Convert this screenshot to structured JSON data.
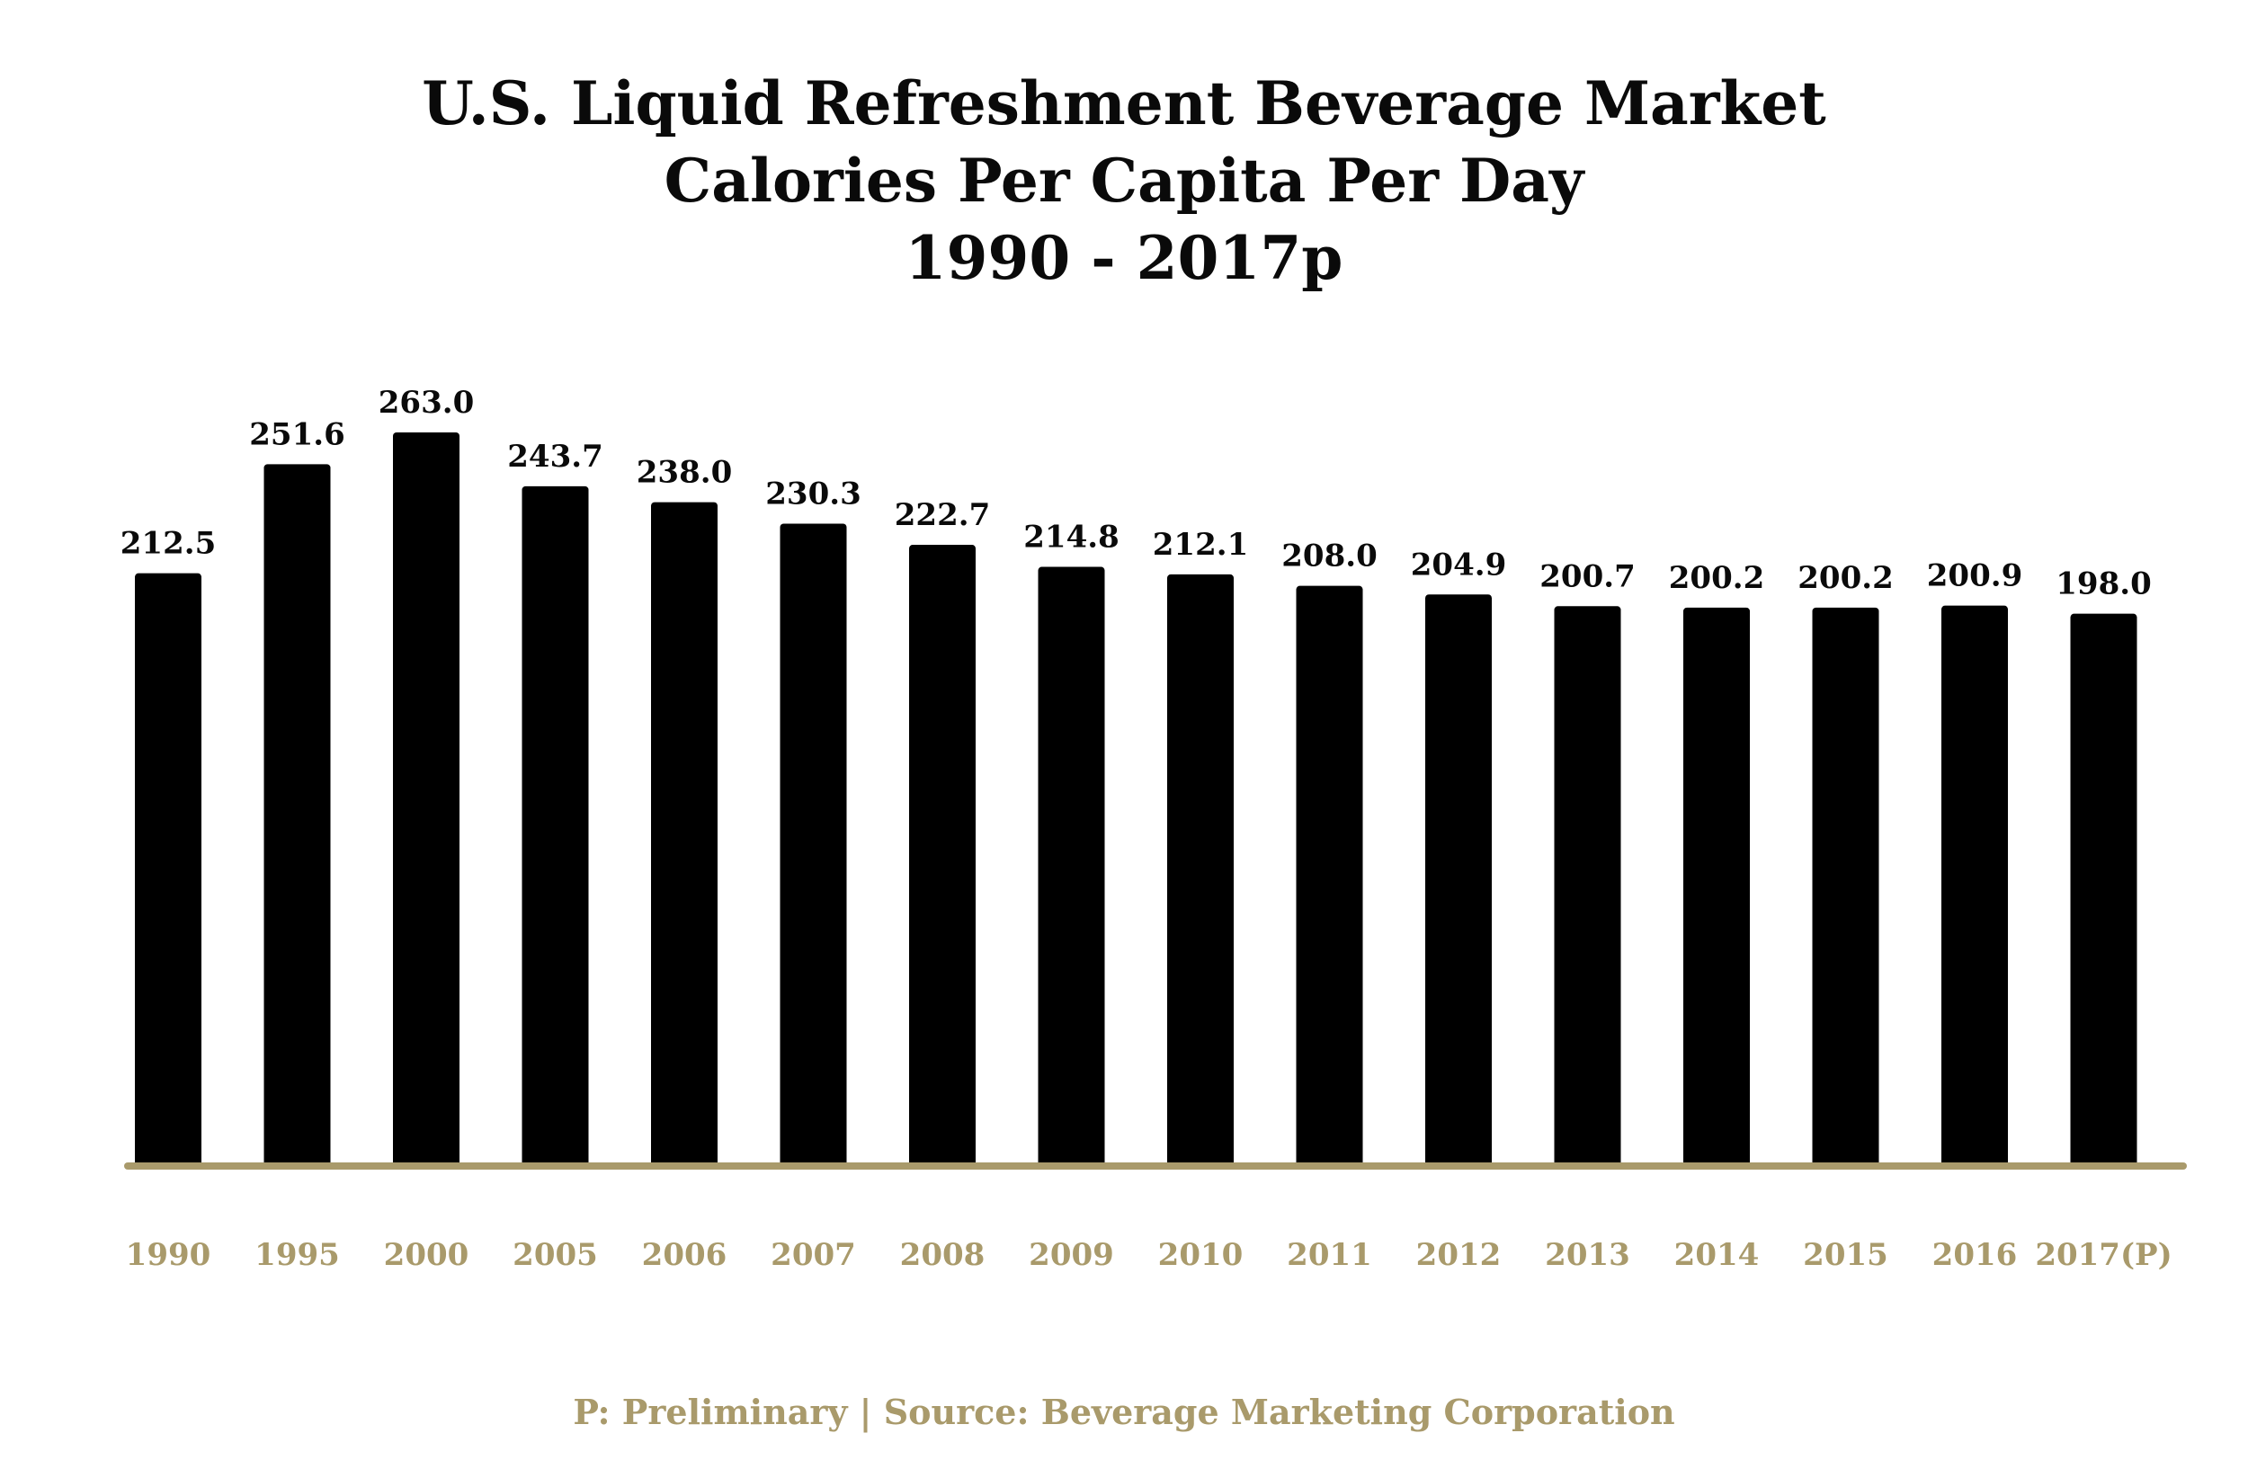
{
  "chart_data": {
    "type": "bar",
    "title_lines": [
      "U.S. Liquid Refreshment Beverage Market",
      "Calories Per Capita Per Day",
      "1990 - 2017p"
    ],
    "categories": [
      "1990",
      "1995",
      "2000",
      "2005",
      "2006",
      "2007",
      "2008",
      "2009",
      "2010",
      "2011",
      "2012",
      "2013",
      "2014",
      "2015",
      "2016",
      "2017(P)"
    ],
    "values": [
      212.5,
      251.6,
      263.0,
      243.7,
      238.0,
      230.3,
      222.7,
      214.8,
      212.1,
      208.0,
      204.9,
      200.7,
      200.2,
      200.2,
      200.9,
      198.0
    ],
    "value_labels": [
      "212.5",
      "251.6",
      "263.0",
      "243.7",
      "238.0",
      "230.3",
      "222.7",
      "214.8",
      "212.1",
      "208.0",
      "204.9",
      "200.7",
      "200.2",
      "200.2",
      "200.9",
      "198.0"
    ],
    "ylim": [
      0,
      263.0
    ],
    "grid": false,
    "colors": {
      "bar": "#000000",
      "axis": "#a99a6b",
      "tick_label": "#a99a6b",
      "value_label": "#0a0a0a"
    }
  },
  "footer": {
    "text": "P: Preliminary  |  Source: Beverage Marketing Corporation",
    "color": "#a99a6b"
  }
}
